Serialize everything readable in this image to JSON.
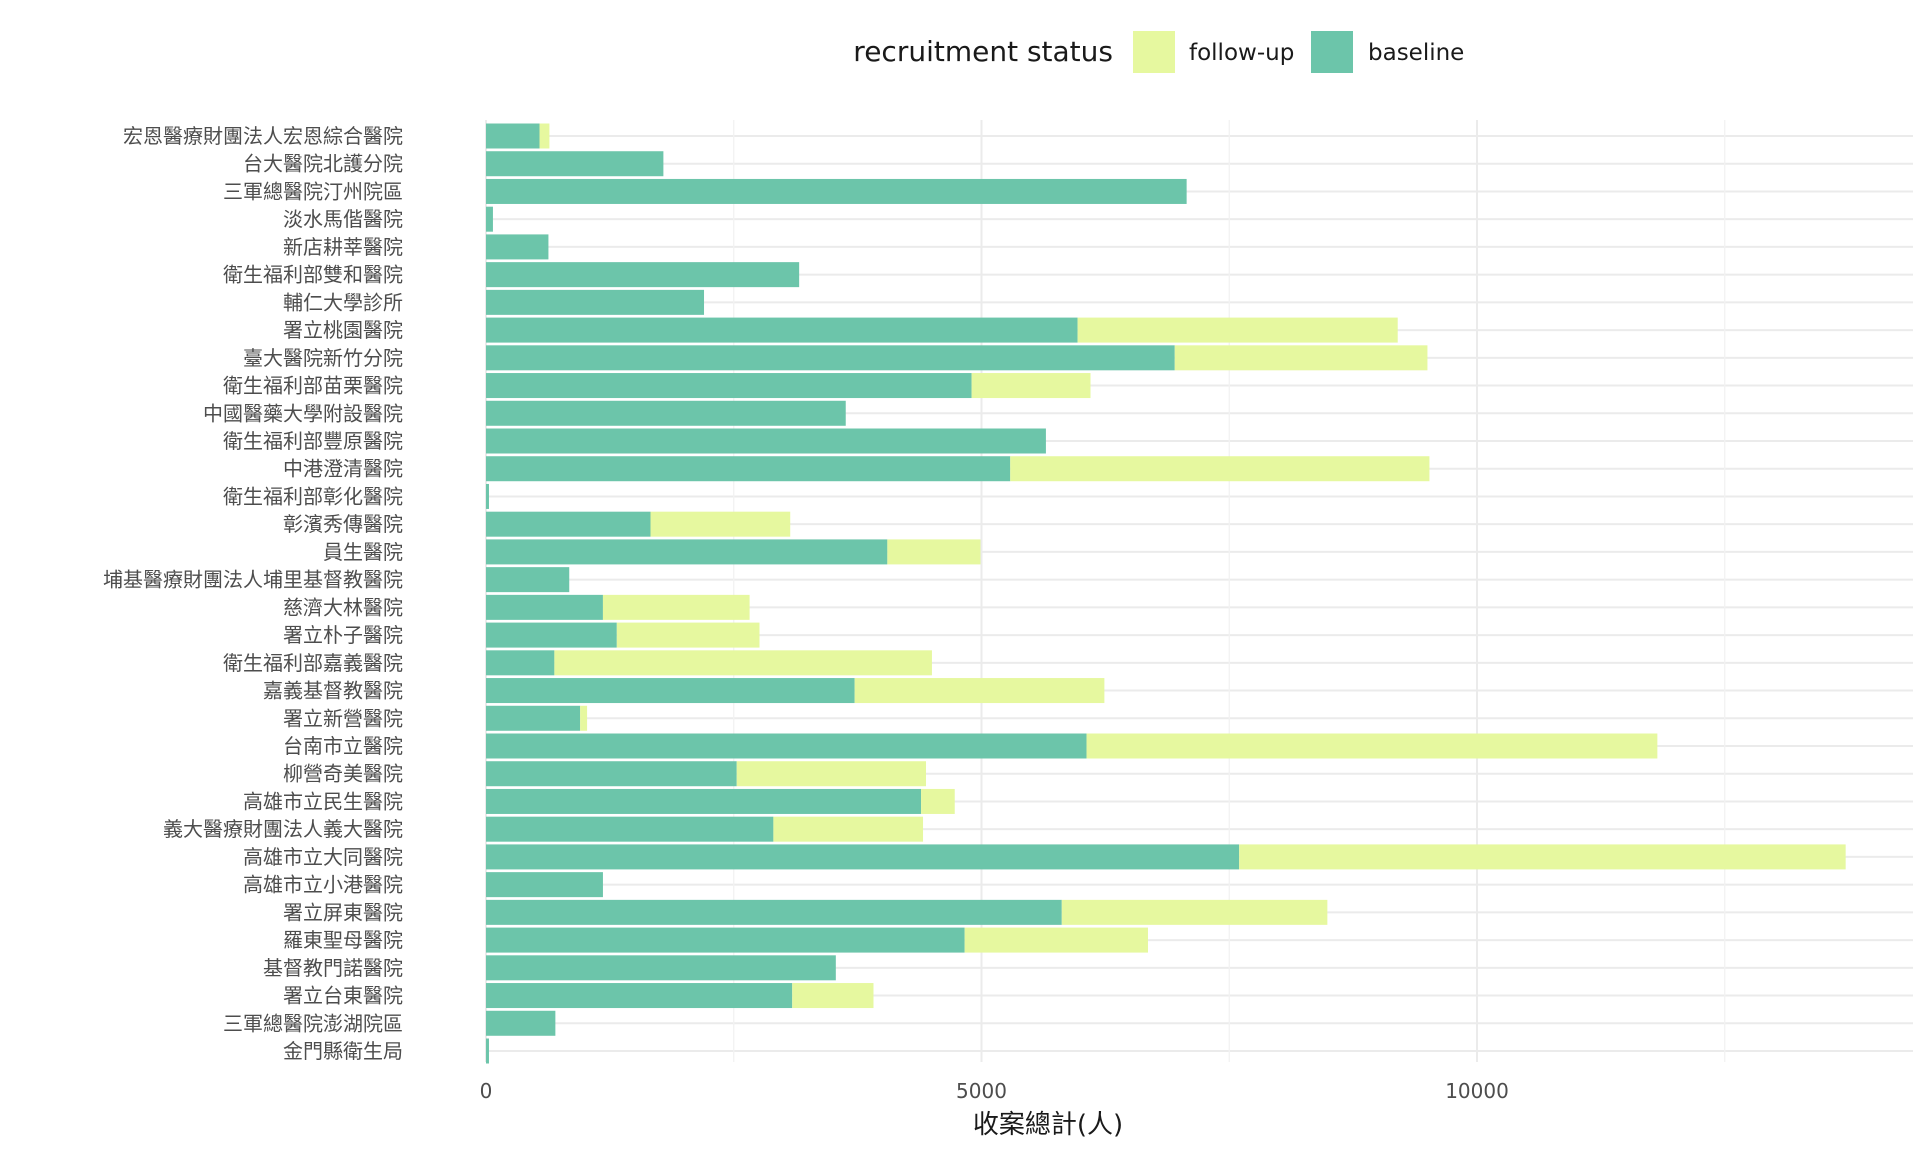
{
  "chart_data": {
    "type": "bar",
    "orientation": "horizontal",
    "stacked": true,
    "xlabel": "收案總計(人)",
    "ylabel": "",
    "xlim": [
      0,
      14400
    ],
    "x_ticks": [
      0,
      5000,
      10000
    ],
    "grid": true,
    "legend": {
      "title": "recruitment status",
      "position": "top",
      "entries": [
        {
          "name": "follow-up",
          "color": "#e6f89f"
        },
        {
          "name": "baseline",
          "color": "#6cc5aa"
        }
      ]
    },
    "categories": [
      "宏恩醫療財團法人宏恩綜合醫院",
      "台大醫院北護分院",
      "三軍總醫院汀州院區",
      "淡水馬偕醫院",
      "新店耕莘醫院",
      "衛生福利部雙和醫院",
      "輔仁大學診所",
      "署立桃園醫院",
      "臺大醫院新竹分院",
      "衛生福利部苗栗醫院",
      "中國醫藥大學附設醫院",
      "衛生福利部豐原醫院",
      "中港澄清醫院",
      "衛生福利部彰化醫院",
      "彰濱秀傳醫院",
      "員生醫院",
      "埔基醫療財團法人埔里基督教醫院",
      "慈濟大林醫院",
      "署立朴子醫院",
      "衛生福利部嘉義醫院",
      "嘉義基督教醫院",
      "署立新營醫院",
      "台南市立醫院",
      "柳營奇美醫院",
      "高雄市立民生醫院",
      "義大醫療財團法人義大醫院",
      "高雄市立大同醫院",
      "高雄市立小港醫院",
      "署立屏東醫院",
      "羅東聖母醫院",
      "基督教門諾醫院",
      "署立台東醫院",
      "三軍總醫院澎湖院區",
      "金門縣衛生局"
    ],
    "series": [
      {
        "name": "baseline",
        "color": "#6cc5aa",
        "values": [
          540,
          1790,
          7070,
          70,
          630,
          3160,
          2200,
          5970,
          6950,
          4900,
          3630,
          5650,
          5290,
          30,
          1660,
          4050,
          840,
          1180,
          1320,
          690,
          3720,
          950,
          6060,
          2530,
          4390,
          2900,
          7600,
          1180,
          5810,
          4830,
          3530,
          3090,
          700,
          30
        ]
      },
      {
        "name": "follow-up",
        "color": "#e6f89f",
        "values": [
          100,
          0,
          0,
          0,
          0,
          0,
          0,
          3230,
          2550,
          1200,
          0,
          0,
          4230,
          0,
          1410,
          940,
          0,
          1480,
          1440,
          3810,
          2520,
          70,
          5760,
          1910,
          340,
          1510,
          6120,
          0,
          2680,
          1850,
          0,
          820,
          0,
          0
        ]
      }
    ]
  }
}
